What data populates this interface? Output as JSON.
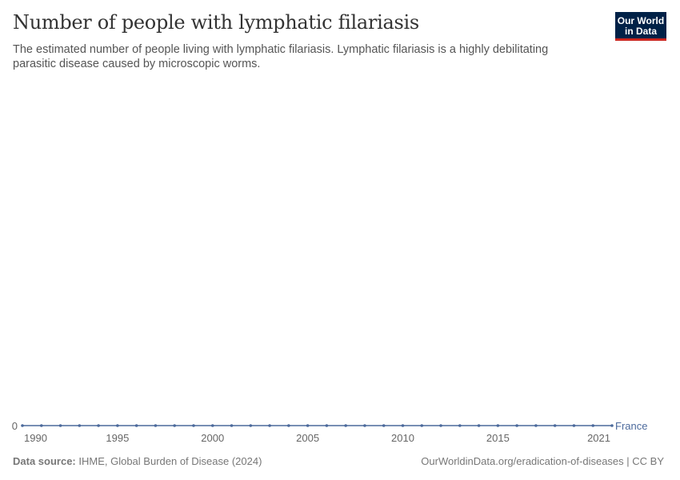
{
  "header": {
    "title": "Number of people with lymphatic filariasis",
    "subtitle": "The estimated number of people living with lymphatic filariasis. Lymphatic filariasis is a highly debilitating parasitic disease caused by microscopic worms.",
    "logo": "Our World in Data"
  },
  "footer": {
    "source_label": "Data source:",
    "source": "IHME, Global Burden of Disease (2024)",
    "url": "OurWorldinData.org/eradication-of-diseases | CC BY"
  },
  "chart_data": {
    "type": "line",
    "title": "Number of people with lymphatic filariasis",
    "x": [
      1990,
      1991,
      1992,
      1993,
      1994,
      1995,
      1996,
      1997,
      1998,
      1999,
      2000,
      2001,
      2002,
      2003,
      2004,
      2005,
      2006,
      2007,
      2008,
      2009,
      2010,
      2011,
      2012,
      2013,
      2014,
      2015,
      2016,
      2017,
      2018,
      2019,
      2020,
      2021
    ],
    "series": [
      {
        "name": "France",
        "color": "#4c6a9c",
        "values": [
          0,
          0,
          0,
          0,
          0,
          0,
          0,
          0,
          0,
          0,
          0,
          0,
          0,
          0,
          0,
          0,
          0,
          0,
          0,
          0,
          0,
          0,
          0,
          0,
          0,
          0,
          0,
          0,
          0,
          0,
          0,
          0
        ]
      }
    ],
    "x_ticks": [
      "1990",
      "1995",
      "2000",
      "2005",
      "2010",
      "2015",
      "2021"
    ],
    "y_ticks": [
      "0"
    ],
    "xlim": [
      1990,
      2021
    ],
    "legend": "right-end-label",
    "grid": false
  }
}
